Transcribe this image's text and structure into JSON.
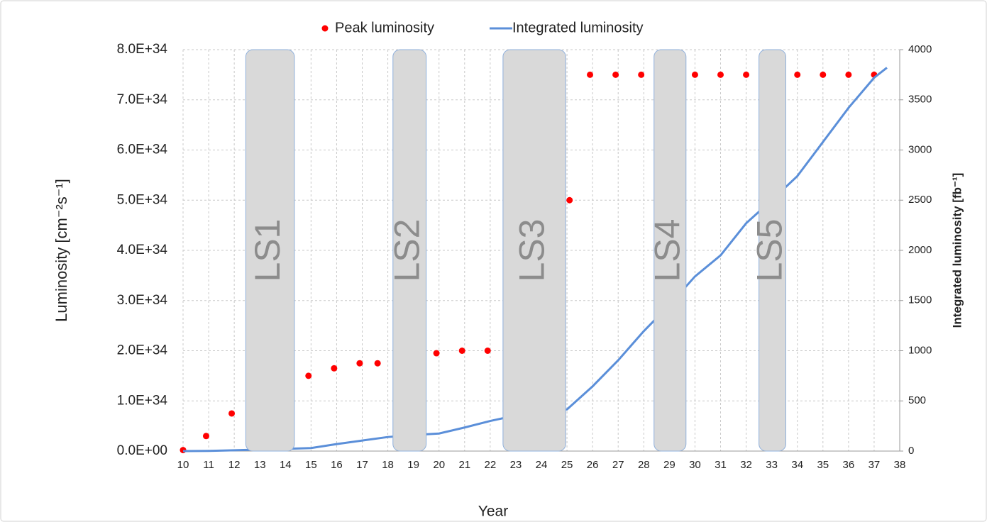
{
  "chart_data": {
    "type": "combo",
    "x_label": "Year",
    "y_label": "Luminosity [cm⁻²s⁻¹]",
    "y2_label": "Integrated luminosity [fb⁻¹]",
    "xlim": [
      10,
      38
    ],
    "xticks": [
      10,
      11,
      12,
      13,
      14,
      15,
      16,
      17,
      18,
      19,
      20,
      21,
      22,
      23,
      24,
      25,
      26,
      27,
      28,
      29,
      30,
      31,
      32,
      33,
      34,
      35,
      36,
      37,
      38
    ],
    "ylim": [
      0,
      8e+34
    ],
    "yticks": [
      {
        "value": 0,
        "label": "0.0E+00"
      },
      {
        "value": 1e+34,
        "label": "1.0E+34"
      },
      {
        "value": 2e+34,
        "label": "2.0E+34"
      },
      {
        "value": 3e+34,
        "label": "3.0E+34"
      },
      {
        "value": 4e+34,
        "label": "4.0E+34"
      },
      {
        "value": 5e+34,
        "label": "5.0E+34"
      },
      {
        "value": 6e+34,
        "label": "6.0E+34"
      },
      {
        "value": 7e+34,
        "label": "7.0E+34"
      },
      {
        "value": 8e+34,
        "label": "8.0E+34"
      }
    ],
    "y2lim": [
      0,
      4000
    ],
    "y2ticks": [
      0,
      500,
      1000,
      1500,
      2000,
      2500,
      3000,
      3500,
      4000
    ],
    "grid": true,
    "legend": "top",
    "series": [
      {
        "name": "Peak luminosity",
        "color": "#ff0000",
        "mode": "markers",
        "x": [
          10,
          10.9,
          11.9,
          14.9,
          15.9,
          16.9,
          17.6,
          19.9,
          20.9,
          21.9,
          25.1,
          25.9,
          26.9,
          27.9,
          30,
          31,
          32,
          34,
          35,
          36,
          37
        ],
        "values": [
          2e+32,
          3e+33,
          7.5e+33,
          1.5e+34,
          1.65e+34,
          1.75e+34,
          1.75e+34,
          1.95e+34,
          2e+34,
          2e+34,
          5e+34,
          7.5e+34,
          7.5e+34,
          7.5e+34,
          7.5e+34,
          7.5e+34,
          7.5e+34,
          7.5e+34,
          7.5e+34,
          7.5e+34,
          7.5e+34
        ]
      },
      {
        "name": "Integrated luminosity",
        "color": "#5b8fd9",
        "mode": "line",
        "axis": "y2",
        "x": [
          10,
          11,
          12,
          13,
          14,
          15,
          16,
          17,
          18,
          19,
          20,
          21,
          22,
          23,
          24,
          25,
          26,
          27,
          28,
          29,
          30,
          31,
          32,
          33,
          34,
          35,
          36,
          37,
          37.5
        ],
        "values": [
          0,
          2,
          8,
          15,
          22,
          30,
          70,
          105,
          140,
          160,
          175,
          235,
          300,
          355,
          400,
          415,
          645,
          905,
          1195,
          1455,
          1740,
          1950,
          2270,
          2500,
          2740,
          3080,
          3420,
          3720,
          3820
        ]
      }
    ],
    "shutdowns": [
      {
        "label": "LS1",
        "start": 12.45,
        "end": 14.35
      },
      {
        "label": "LS2",
        "start": 18.2,
        "end": 19.5
      },
      {
        "label": "LS3",
        "start": 22.5,
        "end": 24.95
      },
      {
        "label": "LS4",
        "start": 28.4,
        "end": 29.65
      },
      {
        "label": "LS5",
        "start": 32.5,
        "end": 33.55
      }
    ]
  }
}
